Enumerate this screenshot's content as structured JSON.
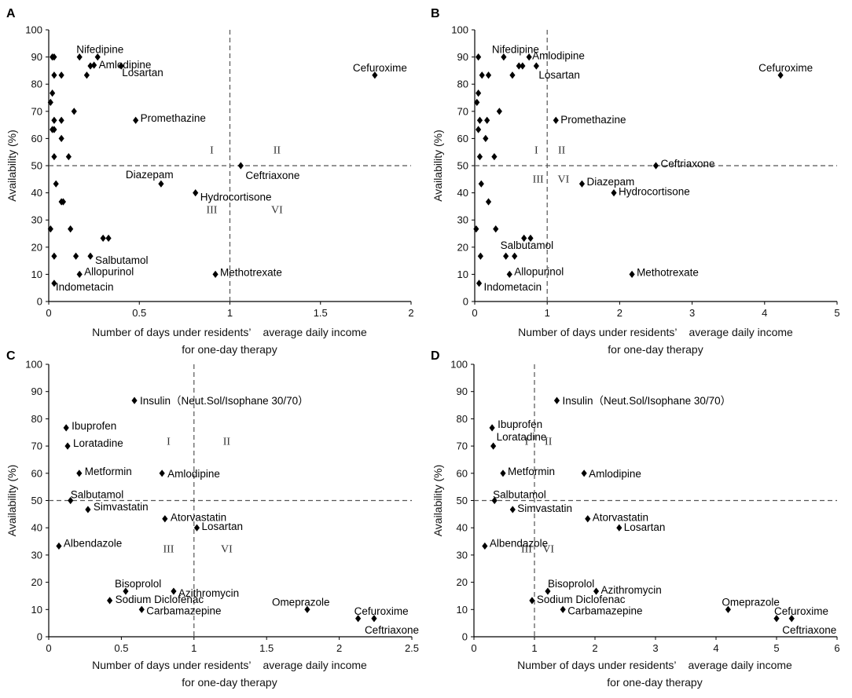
{
  "chart_data": [
    {
      "type": "scatter",
      "panel": "A",
      "xlabel_line1": "Number of days under residents’    average daily income",
      "xlabel_line2": "for one-day therapy",
      "ylabel": "Availability (%)",
      "xlim": [
        0,
        2
      ],
      "ylim": [
        0,
        100
      ],
      "xticks": [
        "0",
        "0.5",
        "1",
        "1.5",
        "2"
      ],
      "yticks": [
        "0",
        "10",
        "20",
        "30",
        "40",
        "50",
        "60",
        "70",
        "80",
        "90",
        "100"
      ],
      "ref_x": 1,
      "ref_y": 50,
      "quadrants": [
        "I",
        "II",
        "III",
        "VI"
      ],
      "labeled_points": [
        {
          "x": 0.27,
          "y": 90,
          "label": "Nifedipine"
        },
        {
          "x": 0.25,
          "y": 87,
          "label": "Amlodipine"
        },
        {
          "x": 0.4,
          "y": 86.7,
          "label": "Losartan"
        },
        {
          "x": 1.8,
          "y": 83.3,
          "label": "Cefuroxime"
        },
        {
          "x": 0.48,
          "y": 66.7,
          "label": "Promethazine"
        },
        {
          "x": 1.06,
          "y": 50,
          "label": "Ceftriaxone"
        },
        {
          "x": 0.62,
          "y": 43.3,
          "label": "Diazepam"
        },
        {
          "x": 0.81,
          "y": 40,
          "label": "Hydrocortisone"
        },
        {
          "x": 0.23,
          "y": 16.7,
          "label": "Salbutamol"
        },
        {
          "x": 0.17,
          "y": 10,
          "label": "Allopurinol"
        },
        {
          "x": 0.92,
          "y": 10,
          "label": "Methotrexate"
        },
        {
          "x": 0.03,
          "y": 6.7,
          "label": "Indometacin"
        }
      ],
      "points": [
        {
          "x": 0.02,
          "y": 90
        },
        {
          "x": 0.03,
          "y": 90
        },
        {
          "x": 0.17,
          "y": 90
        },
        {
          "x": 0.23,
          "y": 86.7
        },
        {
          "x": 0.03,
          "y": 83.3
        },
        {
          "x": 0.07,
          "y": 83.3
        },
        {
          "x": 0.21,
          "y": 83.3
        },
        {
          "x": 0.02,
          "y": 76.7
        },
        {
          "x": 0.01,
          "y": 73.3
        },
        {
          "x": 0.14,
          "y": 70
        },
        {
          "x": 0.03,
          "y": 66.7
        },
        {
          "x": 0.07,
          "y": 66.7
        },
        {
          "x": 0.02,
          "y": 63.3
        },
        {
          "x": 0.03,
          "y": 63.3
        },
        {
          "x": 0.07,
          "y": 60
        },
        {
          "x": 0.03,
          "y": 53.3
        },
        {
          "x": 0.11,
          "y": 53.3
        },
        {
          "x": 0.04,
          "y": 43.3
        },
        {
          "x": 0.07,
          "y": 36.7
        },
        {
          "x": 0.08,
          "y": 36.7
        },
        {
          "x": 0.01,
          "y": 26.7
        },
        {
          "x": 0.12,
          "y": 26.7
        },
        {
          "x": 0.3,
          "y": 23.3
        },
        {
          "x": 0.33,
          "y": 23.3
        },
        {
          "x": 0.03,
          "y": 16.7
        },
        {
          "x": 0.15,
          "y": 16.7
        }
      ]
    },
    {
      "type": "scatter",
      "panel": "B",
      "xlabel_line1": "Number of days under residents’    average daily income",
      "xlabel_line2": "for one-day therapy",
      "ylabel": "Availability (%)",
      "xlim": [
        0,
        5
      ],
      "ylim": [
        0,
        100
      ],
      "xticks": [
        "0",
        "1",
        "2",
        "3",
        "4",
        "5"
      ],
      "yticks": [
        "0",
        "10",
        "20",
        "30",
        "40",
        "50",
        "60",
        "70",
        "80",
        "90",
        "100"
      ],
      "ref_x": 1,
      "ref_y": 50,
      "quadrants": [
        "I",
        "II",
        "III",
        "VI"
      ],
      "labeled_points": [
        {
          "x": 0.4,
          "y": 90,
          "label": "Nifedipine"
        },
        {
          "x": 0.75,
          "y": 90,
          "label": "Amlodipine"
        },
        {
          "x": 0.85,
          "y": 86.7,
          "label": "Losartan"
        },
        {
          "x": 4.22,
          "y": 83.3,
          "label": "Cefuroxime"
        },
        {
          "x": 1.12,
          "y": 66.7,
          "label": "Promethazine"
        },
        {
          "x": 2.5,
          "y": 50,
          "label": "Ceftriaxone"
        },
        {
          "x": 1.48,
          "y": 43.3,
          "label": "Diazepam"
        },
        {
          "x": 1.92,
          "y": 40,
          "label": "Hydrocortisone"
        },
        {
          "x": 0.43,
          "y": 16.7,
          "label": "Salbutamol"
        },
        {
          "x": 0.48,
          "y": 10,
          "label": "Allopurinol"
        },
        {
          "x": 2.17,
          "y": 10,
          "label": "Methotrexate"
        },
        {
          "x": 0.06,
          "y": 6.7,
          "label": "Indometacin"
        }
      ],
      "points": [
        {
          "x": 0.05,
          "y": 90
        },
        {
          "x": 0.61,
          "y": 86.7
        },
        {
          "x": 0.66,
          "y": 86.7
        },
        {
          "x": 0.1,
          "y": 83.3
        },
        {
          "x": 0.19,
          "y": 83.3
        },
        {
          "x": 0.52,
          "y": 83.3
        },
        {
          "x": 0.05,
          "y": 76.7
        },
        {
          "x": 0.03,
          "y": 73.3
        },
        {
          "x": 0.34,
          "y": 70
        },
        {
          "x": 0.07,
          "y": 66.7
        },
        {
          "x": 0.17,
          "y": 66.7
        },
        {
          "x": 0.05,
          "y": 63.3
        },
        {
          "x": 0.15,
          "y": 60
        },
        {
          "x": 0.07,
          "y": 53.3
        },
        {
          "x": 0.27,
          "y": 53.3
        },
        {
          "x": 0.09,
          "y": 43.3
        },
        {
          "x": 0.19,
          "y": 36.7
        },
        {
          "x": 0.02,
          "y": 26.7
        },
        {
          "x": 0.29,
          "y": 26.7
        },
        {
          "x": 0.68,
          "y": 23.3
        },
        {
          "x": 0.77,
          "y": 23.3
        },
        {
          "x": 0.08,
          "y": 16.7
        },
        {
          "x": 0.55,
          "y": 16.7
        }
      ]
    },
    {
      "type": "scatter",
      "panel": "C",
      "xlabel_line1": "Number of days under residents’    average daily income",
      "xlabel_line2": "for one-day therapy",
      "ylabel": "Availability (%)",
      "xlim": [
        0,
        2.5
      ],
      "ylim": [
        0,
        100
      ],
      "xticks": [
        "0",
        "0.5",
        "1",
        "1.5",
        "2",
        "2.5"
      ],
      "yticks": [
        "0",
        "10",
        "20",
        "30",
        "40",
        "50",
        "60",
        "70",
        "80",
        "90",
        "100"
      ],
      "ref_x": 1,
      "ref_y": 50,
      "quadrants": [
        "I",
        "II",
        "III",
        "VI"
      ],
      "labeled_points": [
        {
          "x": 0.59,
          "y": 86.7,
          "label": "Insulin（Neut.Sol/Isophane 30/70）"
        },
        {
          "x": 0.12,
          "y": 76.7,
          "label": "Ibuprofen"
        },
        {
          "x": 0.13,
          "y": 70,
          "label": "Loratadine"
        },
        {
          "x": 0.21,
          "y": 60,
          "label": "Metformin"
        },
        {
          "x": 0.78,
          "y": 60,
          "label": "Amlodipine"
        },
        {
          "x": 0.15,
          "y": 50,
          "label": "Salbutamol"
        },
        {
          "x": 0.27,
          "y": 46.7,
          "label": "Simvastatin"
        },
        {
          "x": 0.8,
          "y": 43.3,
          "label": "Atorvastatin"
        },
        {
          "x": 1.02,
          "y": 40,
          "label": "Losartan"
        },
        {
          "x": 0.07,
          "y": 33.3,
          "label": "Albendazole"
        },
        {
          "x": 0.53,
          "y": 16.7,
          "label": "Bisoprolol"
        },
        {
          "x": 0.86,
          "y": 16.7,
          "label": "Azithromycin"
        },
        {
          "x": 0.42,
          "y": 13.3,
          "label": "Sodium Diclofenac"
        },
        {
          "x": 0.64,
          "y": 10,
          "label": "Carbamazepine"
        },
        {
          "x": 1.78,
          "y": 10,
          "label": "Omeprazole"
        },
        {
          "x": 2.13,
          "y": 6.7,
          "label": "Cefuroxime"
        },
        {
          "x": 2.24,
          "y": 6.7,
          "label": "Ceftriaxone"
        }
      ],
      "points": []
    },
    {
      "type": "scatter",
      "panel": "D",
      "xlabel_line1": "Number of days under residents’    average daily income",
      "xlabel_line2": "for one-day therapy",
      "ylabel": "Availability (%)",
      "xlim": [
        0,
        6
      ],
      "ylim": [
        0,
        100
      ],
      "xticks": [
        "0",
        "1",
        "2",
        "3",
        "4",
        "5",
        "6"
      ],
      "yticks": [
        "0",
        "10",
        "20",
        "30",
        "40",
        "50",
        "60",
        "70",
        "80",
        "90",
        "100"
      ],
      "ref_x": 1,
      "ref_y": 50,
      "quadrants": [
        "I",
        "II",
        "III",
        "VI"
      ],
      "labeled_points": [
        {
          "x": 1.37,
          "y": 86.7,
          "label": "Insulin（Neut.Sol/Isophane 30/70）"
        },
        {
          "x": 0.3,
          "y": 76.7,
          "label": "Ibuprofen"
        },
        {
          "x": 0.32,
          "y": 70,
          "label": "Loratadine"
        },
        {
          "x": 0.48,
          "y": 60,
          "label": "Metformin"
        },
        {
          "x": 1.82,
          "y": 60,
          "label": "Amlodipine"
        },
        {
          "x": 0.34,
          "y": 50,
          "label": "Salbutamol"
        },
        {
          "x": 0.64,
          "y": 46.7,
          "label": "Simvastatin"
        },
        {
          "x": 1.88,
          "y": 43.3,
          "label": "Atorvastatin"
        },
        {
          "x": 2.4,
          "y": 40,
          "label": "Losartan"
        },
        {
          "x": 0.18,
          "y": 33.3,
          "label": "Albendazole"
        },
        {
          "x": 1.22,
          "y": 16.7,
          "label": "Bisoprolol"
        },
        {
          "x": 2.02,
          "y": 16.7,
          "label": "Azithromycin"
        },
        {
          "x": 0.96,
          "y": 13.3,
          "label": "Sodium Diclofenac"
        },
        {
          "x": 1.47,
          "y": 10,
          "label": "Carbamazepine"
        },
        {
          "x": 4.2,
          "y": 10,
          "label": "Omeprazole"
        },
        {
          "x": 5.0,
          "y": 6.7,
          "label": "Cefuroxime"
        },
        {
          "x": 5.25,
          "y": 6.7,
          "label": "Ceftriaxone"
        }
      ],
      "points": []
    }
  ]
}
